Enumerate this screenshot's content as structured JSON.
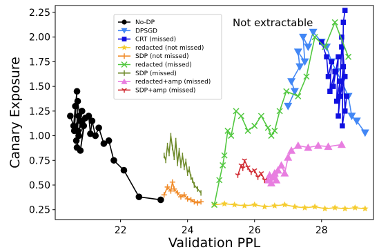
{
  "chart_data": {
    "type": "line",
    "xlabel": "Validation PPL",
    "ylabel": "Canary Exposure",
    "xlim": [
      20.05,
      29.55
    ],
    "ylim": [
      0.15,
      2.32
    ],
    "xticks": [
      22,
      24,
      26,
      28
    ],
    "yticks": [
      0.25,
      0.5,
      0.75,
      1.0,
      1.25,
      1.5,
      1.75,
      2.0,
      2.25
    ],
    "xtick_labels": [
      "22",
      "24",
      "26",
      "28"
    ],
    "ytick_labels": [
      "0.25",
      "0.50",
      "0.75",
      "1.00",
      "1.25",
      "1.50",
      "1.75",
      "2.00",
      "2.25"
    ],
    "annotation": "Not extractable",
    "grid": false,
    "legend_position": "top-left",
    "series": [
      {
        "name": "No-DP",
        "color": "#000000",
        "marker": "circle",
        "x": [
          20.5,
          20.6,
          20.65,
          20.7,
          20.62,
          20.75,
          20.68,
          20.72,
          20.8,
          20.7,
          20.85,
          20.75,
          20.9,
          20.8,
          20.95,
          20.72,
          21.05,
          21.1,
          21.15,
          21.25,
          21.35,
          21.5,
          21.65,
          21.8,
          22.1,
          22.55,
          23.2
        ],
        "y": [
          1.2,
          1.1,
          1.3,
          1.45,
          1.05,
          1.2,
          0.95,
          1.35,
          1.15,
          0.88,
          1.25,
          1.0,
          1.1,
          0.85,
          1.18,
          1.05,
          1.2,
          1.02,
          1.15,
          1.0,
          1.08,
          0.92,
          0.95,
          0.75,
          0.65,
          0.38,
          0.35
        ]
      },
      {
        "name": "DPSGD",
        "color": "#4287f5",
        "marker": "triangle-down",
        "x": [
          27.0,
          27.2,
          27.1,
          27.35,
          27.3,
          27.5,
          27.45,
          27.6,
          27.75,
          28.0,
          28.15,
          28.3,
          28.45,
          28.6,
          28.8,
          28.9,
          29.05,
          29.3
        ],
        "y": [
          1.3,
          1.45,
          1.55,
          1.7,
          1.85,
          1.75,
          2.0,
          1.9,
          2.05,
          1.95,
          1.9,
          1.75,
          1.65,
          1.55,
          1.4,
          1.2,
          1.15,
          1.03
        ]
      },
      {
        "name": "CRT (missed)",
        "color": "#1010e0",
        "marker": "square",
        "x": [
          28.0,
          28.15,
          28.2,
          28.3,
          28.25,
          28.4,
          28.35,
          28.5,
          28.45,
          28.55,
          28.6,
          28.5,
          28.65,
          28.55,
          28.7,
          28.6,
          28.7,
          28.75,
          28.62,
          28.65,
          28.7
        ],
        "y": [
          1.95,
          1.8,
          1.6,
          1.75,
          1.45,
          1.65,
          1.5,
          1.8,
          1.35,
          1.55,
          1.9,
          1.2,
          1.7,
          1.4,
          1.6,
          2.0,
          1.25,
          1.4,
          1.1,
          2.15,
          2.27
        ]
      },
      {
        "name": "redacted (not missed)",
        "color": "#f5cc30",
        "marker": "star",
        "x": [
          24.8,
          25.1,
          25.4,
          25.7,
          26.0,
          26.3,
          26.6,
          26.9,
          27.2,
          27.5,
          27.8,
          28.1,
          28.4,
          28.7,
          29.0,
          29.3
        ],
        "y": [
          0.3,
          0.31,
          0.3,
          0.29,
          0.3,
          0.28,
          0.29,
          0.3,
          0.28,
          0.27,
          0.28,
          0.26,
          0.27,
          0.26,
          0.27,
          0.26
        ]
      },
      {
        "name": "SDP (not missed)",
        "color": "#f08a28",
        "marker": "plus",
        "x": [
          23.3,
          23.4,
          23.5,
          23.55,
          23.6,
          23.7,
          23.8,
          23.9,
          24.0,
          24.1,
          24.2,
          24.3,
          24.4
        ],
        "y": [
          0.4,
          0.48,
          0.44,
          0.53,
          0.46,
          0.42,
          0.38,
          0.4,
          0.36,
          0.35,
          0.33,
          0.32,
          0.33
        ]
      },
      {
        "name": "redacted (missed)",
        "color": "#52c840",
        "marker": "x",
        "x": [
          24.8,
          24.95,
          25.05,
          25.1,
          25.2,
          25.3,
          25.45,
          25.6,
          25.8,
          26.0,
          26.2,
          26.4,
          26.5,
          26.6,
          26.75,
          26.95,
          27.3,
          27.55,
          27.8,
          28.1,
          28.4,
          28.8
        ],
        "y": [
          0.3,
          0.55,
          0.7,
          0.8,
          1.05,
          1.0,
          1.25,
          1.2,
          1.05,
          1.1,
          1.2,
          1.08,
          1.0,
          1.05,
          1.25,
          1.45,
          1.4,
          1.6,
          2.0,
          1.9,
          2.15,
          1.8
        ]
      },
      {
        "name": "SDP (missed)",
        "color": "#6e8a2a",
        "marker": "pipe",
        "x": [
          23.3,
          23.35,
          23.4,
          23.45,
          23.5,
          23.55,
          23.6,
          23.65,
          23.7,
          23.75,
          23.8,
          23.85,
          23.9,
          23.95,
          24.0,
          24.05,
          24.1,
          24.15,
          24.2,
          24.3,
          24.4
        ],
        "y": [
          0.8,
          0.75,
          0.9,
          0.82,
          1.0,
          0.88,
          0.78,
          0.95,
          0.72,
          0.85,
          0.7,
          0.8,
          0.68,
          0.74,
          0.62,
          0.66,
          0.58,
          0.55,
          0.5,
          0.46,
          0.42
        ]
      },
      {
        "name": "redacted+amp (missed)",
        "color": "#e87ee0",
        "marker": "triangle-up",
        "x": [
          26.4,
          26.45,
          26.5,
          26.55,
          26.6,
          26.65,
          26.7,
          26.8,
          26.9,
          27.0,
          27.1,
          27.3,
          27.6,
          27.9,
          28.2,
          28.6
        ],
        "y": [
          0.55,
          0.6,
          0.52,
          0.58,
          0.62,
          0.55,
          0.65,
          0.7,
          0.62,
          0.78,
          0.85,
          0.9,
          0.88,
          0.9,
          0.89,
          0.91
        ]
      },
      {
        "name": "SDP+amp (missed)",
        "color": "#d02a32",
        "marker": "tri-down",
        "x": [
          25.5,
          25.6,
          25.65,
          25.7,
          25.8,
          25.9,
          26.0,
          26.1,
          26.2,
          26.3
        ],
        "y": [
          0.6,
          0.7,
          0.67,
          0.75,
          0.68,
          0.63,
          0.65,
          0.58,
          0.62,
          0.55
        ]
      }
    ]
  }
}
